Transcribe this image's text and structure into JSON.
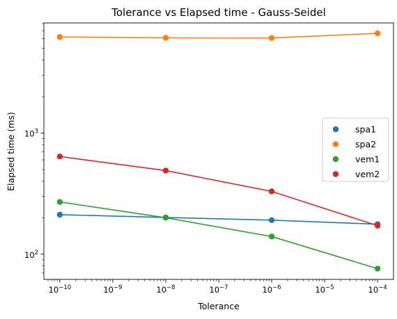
{
  "chart_data": {
    "type": "line",
    "title": "Tolerance vs Elapsed time - Gauss-Seidel",
    "xlabel": "Tolerance",
    "ylabel": "Elapsed time (ms)",
    "xscale": "log",
    "yscale": "log",
    "xlim": [
      5e-11,
      0.0002
    ],
    "ylim": [
      62,
      8100
    ],
    "x": [
      1e-10,
      1e-08,
      1e-06,
      0.0001
    ],
    "x_ticks": [
      {
        "value": 1e-10,
        "base": "10",
        "exp": "−10"
      },
      {
        "value": 1e-09,
        "base": "10",
        "exp": "−9"
      },
      {
        "value": 1e-08,
        "base": "10",
        "exp": "−8"
      },
      {
        "value": 1e-07,
        "base": "10",
        "exp": "−7"
      },
      {
        "value": 1e-06,
        "base": "10",
        "exp": "−6"
      },
      {
        "value": 1e-05,
        "base": "10",
        "exp": "−5"
      },
      {
        "value": 0.0001,
        "base": "10",
        "exp": "−4"
      }
    ],
    "y_ticks": [
      {
        "value": 100,
        "base": "10",
        "exp": "2"
      },
      {
        "value": 1000,
        "base": "10",
        "exp": "3"
      }
    ],
    "series": [
      {
        "name": "spa1",
        "color": "#1f77b4",
        "values": [
          212,
          201,
          191,
          177
        ]
      },
      {
        "name": "spa2",
        "color": "#ff7f0e",
        "values": [
          6200,
          6100,
          6080,
          6650
        ]
      },
      {
        "name": "vem1",
        "color": "#2ca02c",
        "values": [
          270,
          200,
          140,
          76
        ]
      },
      {
        "name": "vem2",
        "color": "#d62728",
        "values": [
          640,
          490,
          330,
          172
        ]
      }
    ],
    "legend": {
      "position": "center-right"
    },
    "grid": false
  }
}
